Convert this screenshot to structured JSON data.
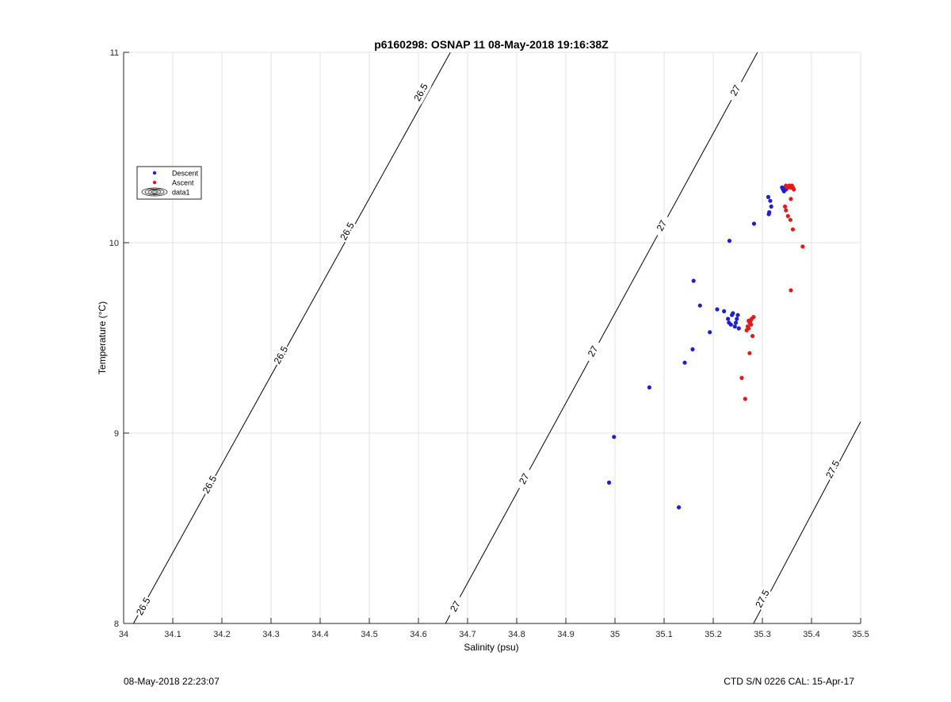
{
  "chart_data": {
    "type": "scatter",
    "title": "p6160298: OSNAP 11 08-May-2018 19:16:38Z",
    "xlabel": "Salinity (psu)",
    "ylabel": "Temperature (°C)",
    "xlim": [
      34,
      35.5
    ],
    "ylim": [
      8,
      11
    ],
    "xticks": [
      34,
      34.1,
      34.2,
      34.3,
      34.4,
      34.5,
      34.6,
      34.7,
      34.8,
      34.9,
      35,
      35.1,
      35.2,
      35.3,
      35.4,
      35.5
    ],
    "yticks": [
      8,
      9,
      10,
      11
    ],
    "grid": true,
    "legend_position": "upper-left",
    "legend": [
      "Descent",
      "Ascent",
      "data1"
    ],
    "series": [
      {
        "name": "Descent",
        "color": "#1f1fd0",
        "points": [
          [
            34.988,
            8.74
          ],
          [
            34.998,
            8.98
          ],
          [
            35.13,
            8.61
          ],
          [
            35.07,
            9.24
          ],
          [
            35.142,
            9.37
          ],
          [
            35.158,
            9.44
          ],
          [
            35.193,
            9.53
          ],
          [
            35.173,
            9.67
          ],
          [
            35.16,
            9.8
          ],
          [
            35.208,
            9.65
          ],
          [
            35.222,
            9.64
          ],
          [
            35.23,
            9.6
          ],
          [
            35.232,
            9.58
          ],
          [
            35.236,
            9.57
          ],
          [
            35.24,
            9.63
          ],
          [
            35.244,
            9.56
          ],
          [
            35.238,
            9.62
          ],
          [
            35.248,
            9.6
          ],
          [
            35.252,
            9.55
          ],
          [
            35.25,
            9.62
          ],
          [
            35.246,
            9.58
          ],
          [
            35.233,
            10.01
          ],
          [
            35.283,
            10.1
          ],
          [
            35.312,
            10.24
          ],
          [
            35.316,
            10.22
          ],
          [
            35.318,
            10.19
          ],
          [
            35.314,
            10.16
          ],
          [
            35.313,
            10.15
          ],
          [
            35.34,
            10.29
          ],
          [
            35.342,
            10.28
          ],
          [
            35.344,
            10.27
          ],
          [
            35.346,
            10.29
          ],
          [
            35.348,
            10.28
          ]
        ]
      },
      {
        "name": "Ascent",
        "color": "#e21a1a",
        "points": [
          [
            35.265,
            9.18
          ],
          [
            35.258,
            9.29
          ],
          [
            35.274,
            9.42
          ],
          [
            35.28,
            9.51
          ],
          [
            35.268,
            9.54
          ],
          [
            35.27,
            9.56
          ],
          [
            35.272,
            9.55
          ],
          [
            35.274,
            9.58
          ],
          [
            35.276,
            9.59
          ],
          [
            35.278,
            9.6
          ],
          [
            35.282,
            9.61
          ],
          [
            35.277,
            9.57
          ],
          [
            35.272,
            9.59
          ],
          [
            35.358,
            9.75
          ],
          [
            35.382,
            9.98
          ],
          [
            35.362,
            10.07
          ],
          [
            35.357,
            10.12
          ],
          [
            35.352,
            10.14
          ],
          [
            35.348,
            10.17
          ],
          [
            35.346,
            10.19
          ],
          [
            35.358,
            10.23
          ],
          [
            35.348,
            10.3
          ],
          [
            35.352,
            10.29
          ],
          [
            35.355,
            10.3
          ],
          [
            35.358,
            10.29
          ],
          [
            35.36,
            10.3
          ],
          [
            35.362,
            10.29
          ],
          [
            35.364,
            10.28
          ],
          [
            35.35,
            10.29
          ]
        ]
      }
    ],
    "contours": [
      {
        "level": "26.5",
        "line": [
          [
            34.02,
            8.0
          ],
          [
            34.665,
            11.0
          ]
        ],
        "labels": [
          [
            34.04,
            8.09
          ],
          [
            34.175,
            8.73
          ],
          [
            34.32,
            9.41
          ],
          [
            34.455,
            10.06
          ],
          [
            34.605,
            10.79
          ]
        ]
      },
      {
        "level": "27",
        "line": [
          [
            34.655,
            8.0
          ],
          [
            35.29,
            11.0
          ]
        ],
        "labels": [
          [
            34.675,
            8.09
          ],
          [
            34.815,
            8.76
          ],
          [
            34.955,
            9.43
          ],
          [
            35.095,
            10.09
          ],
          [
            35.245,
            10.8
          ]
        ]
      },
      {
        "level": "27.5",
        "line": [
          [
            35.282,
            8.0
          ],
          [
            35.5,
            9.06
          ]
        ],
        "labels": [
          [
            35.3,
            8.13
          ],
          [
            35.443,
            8.81
          ]
        ]
      }
    ]
  },
  "footer": {
    "timestamp": "08-May-2018 22:23:07",
    "instrument": "CTD S/N 0226  CAL: 15-Apr-17"
  }
}
